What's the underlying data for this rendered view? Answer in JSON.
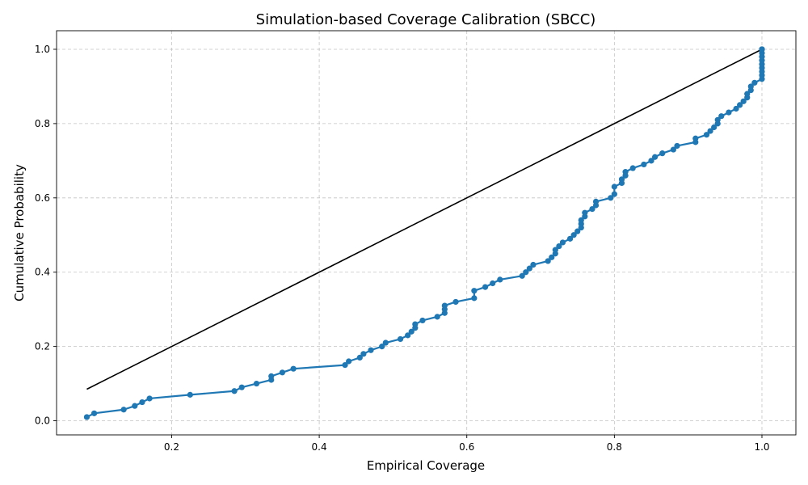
{
  "chart_data": {
    "type": "line",
    "title": "Simulation-based Coverage Calibration (SBCC)",
    "xlabel": "Empirical Coverage",
    "ylabel": "Cumulative Probability",
    "xlim": [
      0.044,
      1.046
    ],
    "ylim": [
      -0.038,
      1.05
    ],
    "xticks": [
      "0.2",
      "0.4",
      "0.6",
      "0.8",
      "1.0"
    ],
    "yticks": [
      "0.0",
      "0.2",
      "0.4",
      "0.6",
      "0.8",
      "1.0"
    ],
    "grid": true,
    "colors": {
      "series": "#1f77b4",
      "reference": "#000000",
      "grid": "#b0b0b0"
    },
    "series": [
      {
        "style": "line-with-markers",
        "x": [
          0.085,
          0.095,
          0.135,
          0.15,
          0.16,
          0.17,
          0.225,
          0.285,
          0.295,
          0.315,
          0.335,
          0.335,
          0.35,
          0.365,
          0.435,
          0.44,
          0.455,
          0.46,
          0.47,
          0.485,
          0.49,
          0.51,
          0.52,
          0.525,
          0.53,
          0.53,
          0.54,
          0.56,
          0.57,
          0.57,
          0.57,
          0.585,
          0.61,
          0.61,
          0.625,
          0.635,
          0.645,
          0.675,
          0.68,
          0.685,
          0.69,
          0.71,
          0.715,
          0.72,
          0.72,
          0.725,
          0.73,
          0.74,
          0.745,
          0.75,
          0.755,
          0.755,
          0.755,
          0.76,
          0.76,
          0.77,
          0.775,
          0.775,
          0.795,
          0.8,
          0.8,
          0.81,
          0.81,
          0.815,
          0.815,
          0.825,
          0.84,
          0.85,
          0.855,
          0.865,
          0.88,
          0.885,
          0.91,
          0.91,
          0.925,
          0.93,
          0.935,
          0.94,
          0.94,
          0.945,
          0.955,
          0.965,
          0.97,
          0.975,
          0.98,
          0.98,
          0.985,
          0.985,
          0.99,
          1.0,
          1.0,
          1.0,
          1.0,
          1.0,
          1.0,
          1.0,
          1.0,
          1.0,
          1.0
        ],
        "y": [
          0.01,
          0.02,
          0.03,
          0.04,
          0.05,
          0.06,
          0.07,
          0.08,
          0.09,
          0.1,
          0.11,
          0.12,
          0.13,
          0.14,
          0.15,
          0.16,
          0.17,
          0.18,
          0.19,
          0.2,
          0.21,
          0.22,
          0.23,
          0.24,
          0.25,
          0.26,
          0.27,
          0.28,
          0.29,
          0.3,
          0.31,
          0.32,
          0.33,
          0.35,
          0.36,
          0.37,
          0.38,
          0.39,
          0.4,
          0.41,
          0.42,
          0.43,
          0.44,
          0.45,
          0.46,
          0.47,
          0.48,
          0.49,
          0.5,
          0.51,
          0.52,
          0.53,
          0.54,
          0.55,
          0.56,
          0.57,
          0.58,
          0.59,
          0.6,
          0.61,
          0.63,
          0.64,
          0.65,
          0.66,
          0.67,
          0.68,
          0.69,
          0.7,
          0.71,
          0.72,
          0.73,
          0.74,
          0.75,
          0.76,
          0.77,
          0.78,
          0.79,
          0.8,
          0.81,
          0.82,
          0.83,
          0.84,
          0.85,
          0.86,
          0.87,
          0.88,
          0.89,
          0.9,
          0.91,
          0.92,
          0.93,
          0.94,
          0.95,
          0.96,
          0.97,
          0.98,
          0.99,
          1.0,
          1.0
        ]
      },
      {
        "style": "line",
        "x": [
          0.085,
          1.0
        ],
        "y": [
          0.085,
          1.0
        ]
      }
    ]
  }
}
